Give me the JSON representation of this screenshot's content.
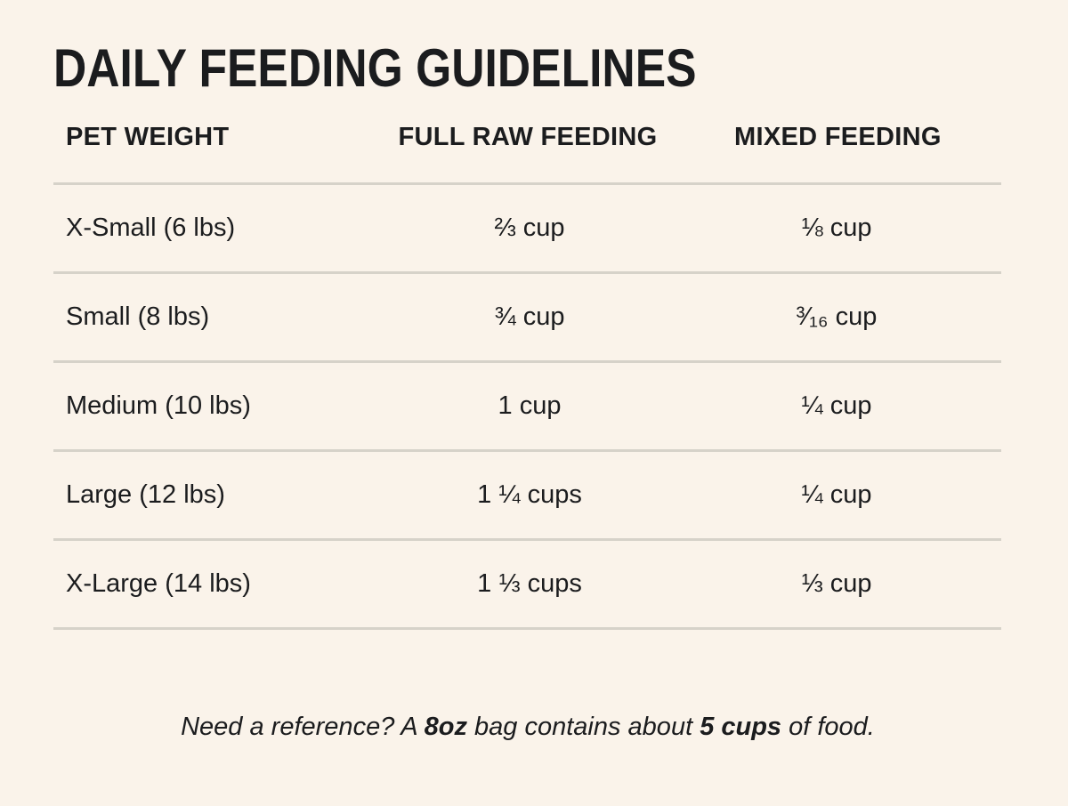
{
  "title": "DAILY FEEDING GUIDELINES",
  "table": {
    "headers": [
      "PET WEIGHT",
      "FULL RAW FEEDING",
      "MIXED FEEDING"
    ],
    "rows": [
      {
        "weight": "X-Small (6 lbs)",
        "full_raw": "⅔ cup",
        "mixed": "⅛ cup"
      },
      {
        "weight": "Small (8 lbs)",
        "full_raw": "¾ cup",
        "mixed": "³⁄₁₆ cup"
      },
      {
        "weight": "Medium (10 lbs)",
        "full_raw": "1 cup",
        "mixed": "¼ cup"
      },
      {
        "weight": "Large (12 lbs)",
        "full_raw": "1 ¼ cups",
        "mixed": "¼ cup"
      },
      {
        "weight": "X-Large (14 lbs)",
        "full_raw": "1 ⅓ cups",
        "mixed": "⅓ cup"
      }
    ]
  },
  "note": {
    "part1": "Need a reference? A ",
    "bag_size": "8oz",
    "part2": " bag contains about ",
    "cups": "5 cups",
    "part3": " of food."
  },
  "colors": {
    "background": "#faf3ea",
    "text": "#1b1c1e",
    "divider": "#d6d2c9"
  }
}
